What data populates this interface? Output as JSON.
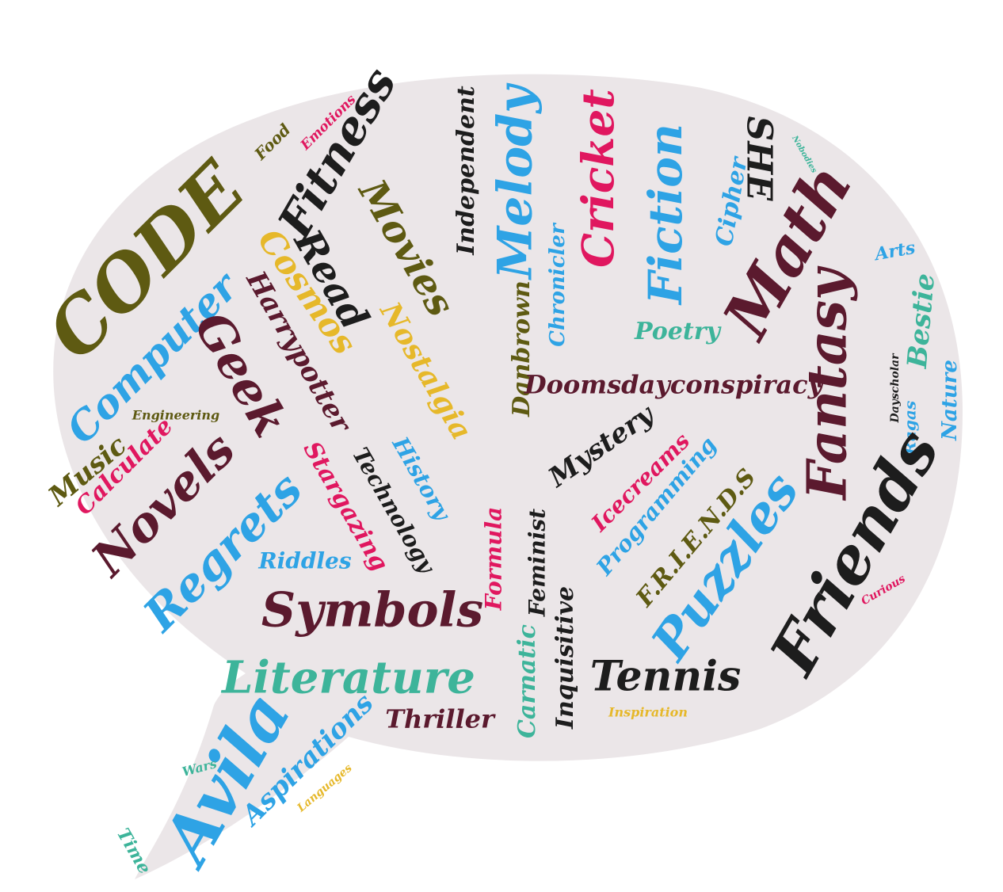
{
  "colors": {
    "background": "#ffffff",
    "bubble": "#ebe6e8",
    "maroon": "#5b1a2e",
    "black": "#1d1d1d",
    "olive": "#5e5a12",
    "sky": "#2ea3e5",
    "teal": "#3db49a",
    "pink": "#e0175f",
    "gold": "#e6b82a"
  },
  "words": [
    {
      "text": "CODE",
      "color": "olive"
    },
    {
      "text": "Computer",
      "color": "sky"
    },
    {
      "text": "Cosmos",
      "color": "gold"
    },
    {
      "text": "Fitness",
      "color": "black"
    },
    {
      "text": "Read",
      "color": "black"
    },
    {
      "text": "Movies",
      "color": "olive"
    },
    {
      "text": "Food",
      "color": "olive"
    },
    {
      "text": "Emotions",
      "color": "pink"
    },
    {
      "text": "Independent",
      "color": "black"
    },
    {
      "text": "Melody",
      "color": "sky"
    },
    {
      "text": "Cricket",
      "color": "pink"
    },
    {
      "text": "Fiction",
      "color": "sky"
    },
    {
      "text": "SHE",
      "color": "black"
    },
    {
      "text": "Nobodies",
      "color": "teal"
    },
    {
      "text": "Cipher",
      "color": "sky"
    },
    {
      "text": "Chronicler",
      "color": "sky"
    },
    {
      "text": "Math",
      "color": "maroon"
    },
    {
      "text": "Arts",
      "color": "sky"
    },
    {
      "text": "Harrypotter",
      "color": "maroon"
    },
    {
      "text": "Nostalgia",
      "color": "gold"
    },
    {
      "text": "Poetry",
      "color": "teal"
    },
    {
      "text": "Bestie",
      "color": "teal"
    },
    {
      "text": "Geek",
      "color": "maroon"
    },
    {
      "text": "Danbrown",
      "color": "olive"
    },
    {
      "text": "Doomsdayconspiracy",
      "color": "maroon"
    },
    {
      "text": "Fantasy",
      "color": "maroon"
    },
    {
      "text": "Dayscholar",
      "color": "black"
    },
    {
      "text": "Nature",
      "color": "sky"
    },
    {
      "text": "Ragas",
      "color": "sky"
    },
    {
      "text": "Engineering",
      "color": "olive"
    },
    {
      "text": "Music",
      "color": "olive"
    },
    {
      "text": "Calculate",
      "color": "pink"
    },
    {
      "text": "History",
      "color": "sky"
    },
    {
      "text": "Technology",
      "color": "black"
    },
    {
      "text": "Stargazing",
      "color": "pink"
    },
    {
      "text": "Mystery",
      "color": "black"
    },
    {
      "text": "Icecreams",
      "color": "pink"
    },
    {
      "text": "Programming",
      "color": "sky"
    },
    {
      "text": "F.R.I.E.N.D.S",
      "color": "olive"
    },
    {
      "text": "Friends",
      "color": "black"
    },
    {
      "text": "Novels",
      "color": "maroon"
    },
    {
      "text": "Regrets",
      "color": "sky"
    },
    {
      "text": "Formula",
      "color": "pink"
    },
    {
      "text": "Feminist",
      "color": "black"
    },
    {
      "text": "Puzzles",
      "color": "sky"
    },
    {
      "text": "Riddles",
      "color": "sky"
    },
    {
      "text": "Curious",
      "color": "pink"
    },
    {
      "text": "Symbols",
      "color": "maroon"
    },
    {
      "text": "Inquisitive",
      "color": "black"
    },
    {
      "text": "Carnatic",
      "color": "teal"
    },
    {
      "text": "Literature",
      "color": "teal"
    },
    {
      "text": "Tennis",
      "color": "black"
    },
    {
      "text": "Inspiration",
      "color": "gold"
    },
    {
      "text": "Thriller",
      "color": "maroon"
    },
    {
      "text": "Aspirations",
      "color": "sky"
    },
    {
      "text": "Avila",
      "color": "sky"
    },
    {
      "text": "Wars",
      "color": "teal"
    },
    {
      "text": "Languages",
      "color": "gold"
    },
    {
      "text": "Time",
      "color": "teal"
    }
  ]
}
